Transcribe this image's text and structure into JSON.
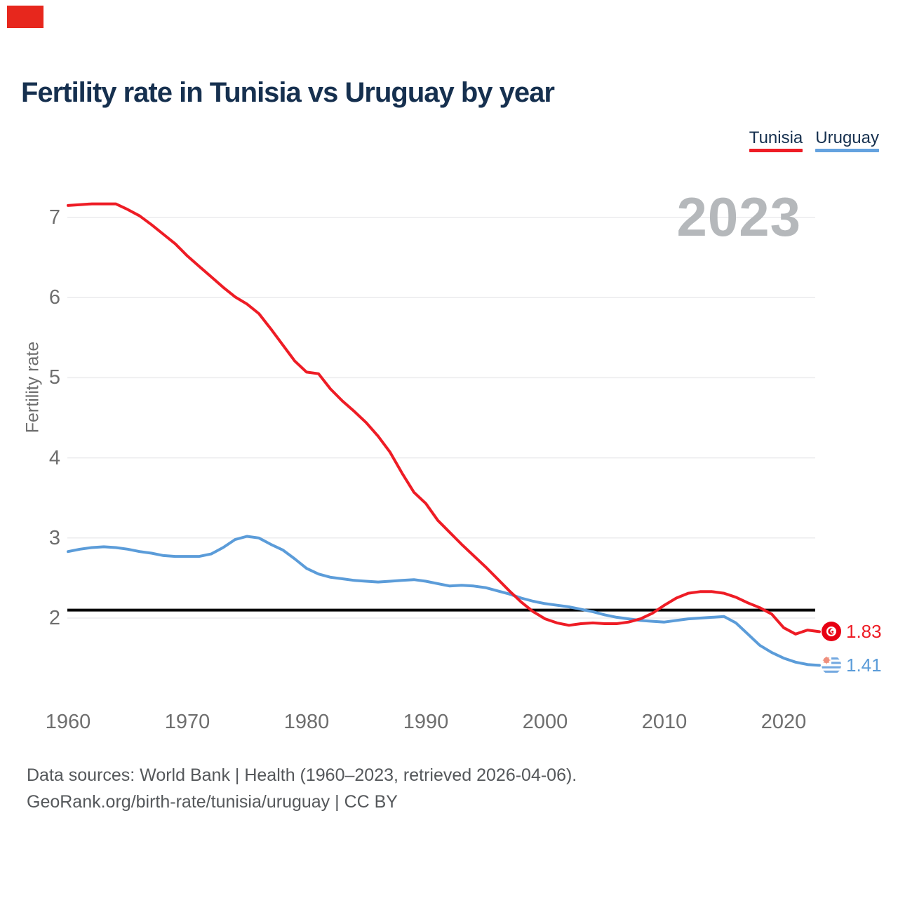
{
  "title": {
    "text": "Fertility rate in Tunisia vs Uruguay by year"
  },
  "legend": {
    "items": [
      {
        "label": "Tunisia",
        "color": "#ee1c25"
      },
      {
        "label": "Uruguay",
        "color": "#64a2df"
      }
    ]
  },
  "watermark": {
    "text": "2023"
  },
  "y_axis": {
    "label": "Fertility rate",
    "ticks": [
      7,
      6,
      5,
      4,
      3,
      2
    ]
  },
  "x_axis": {
    "ticks": [
      1960,
      1970,
      1980,
      1990,
      2000,
      2010,
      2020
    ]
  },
  "end_labels": [
    {
      "series": "Tunisia",
      "value": "1.83"
    },
    {
      "series": "Uruguay",
      "value": "1.41"
    }
  ],
  "source": {
    "line1": "Data sources: World Bank | Health (1960–2023, retrieved 2026-04-06).",
    "line2": "GeoRank.org/birth-rate/tunisia/uruguay | CC BY"
  },
  "chart_data": {
    "type": "line",
    "title": "Fertility rate in Tunisia vs Uruguay by year",
    "xlabel": "",
    "ylabel": "Fertility rate",
    "x_range": [
      1960,
      2023
    ],
    "ylim": [
      1.25,
      7.35
    ],
    "grid": "horizontal",
    "legend_position": "top-right",
    "reference_line": {
      "value": 2.1,
      "color": "#000000"
    },
    "x": [
      1960,
      1961,
      1962,
      1963,
      1964,
      1965,
      1966,
      1967,
      1968,
      1969,
      1970,
      1971,
      1972,
      1973,
      1974,
      1975,
      1976,
      1977,
      1978,
      1979,
      1980,
      1981,
      1982,
      1983,
      1984,
      1985,
      1986,
      1987,
      1988,
      1989,
      1990,
      1991,
      1992,
      1993,
      1994,
      1995,
      1996,
      1997,
      1998,
      1999,
      2000,
      2001,
      2002,
      2003,
      2004,
      2005,
      2006,
      2007,
      2008,
      2009,
      2010,
      2011,
      2012,
      2013,
      2014,
      2015,
      2016,
      2017,
      2018,
      2019,
      2020,
      2021,
      2022,
      2023
    ],
    "series": [
      {
        "name": "Tunisia",
        "color": "#ee1c25",
        "final_value": 1.83,
        "values": [
          7.15,
          7.16,
          7.17,
          7.17,
          7.17,
          7.1,
          7.02,
          6.91,
          6.79,
          6.67,
          6.52,
          6.39,
          6.26,
          6.13,
          6.01,
          5.92,
          5.8,
          5.61,
          5.41,
          5.21,
          5.07,
          5.05,
          4.86,
          4.71,
          4.58,
          4.44,
          4.27,
          4.07,
          3.81,
          3.57,
          3.43,
          3.22,
          3.07,
          2.92,
          2.78,
          2.64,
          2.49,
          2.34,
          2.2,
          2.08,
          1.99,
          1.94,
          1.91,
          1.93,
          1.94,
          1.93,
          1.93,
          1.95,
          1.99,
          2.06,
          2.16,
          2.25,
          2.31,
          2.33,
          2.33,
          2.31,
          2.26,
          2.19,
          2.13,
          2.05,
          1.88,
          1.8,
          1.85,
          1.83
        ]
      },
      {
        "name": "Uruguay",
        "color": "#5b9cd9",
        "final_value": 1.41,
        "values": [
          2.83,
          2.86,
          2.88,
          2.89,
          2.88,
          2.86,
          2.83,
          2.81,
          2.78,
          2.77,
          2.77,
          2.77,
          2.8,
          2.88,
          2.98,
          3.02,
          3.0,
          2.92,
          2.85,
          2.74,
          2.62,
          2.55,
          2.51,
          2.49,
          2.47,
          2.46,
          2.45,
          2.46,
          2.47,
          2.48,
          2.46,
          2.43,
          2.4,
          2.41,
          2.4,
          2.38,
          2.34,
          2.3,
          2.25,
          2.21,
          2.18,
          2.16,
          2.14,
          2.11,
          2.08,
          2.04,
          2.01,
          1.99,
          1.97,
          1.96,
          1.95,
          1.97,
          1.99,
          2.0,
          2.01,
          2.02,
          1.94,
          1.8,
          1.66,
          1.57,
          1.5,
          1.45,
          1.42,
          1.41
        ]
      }
    ]
  }
}
